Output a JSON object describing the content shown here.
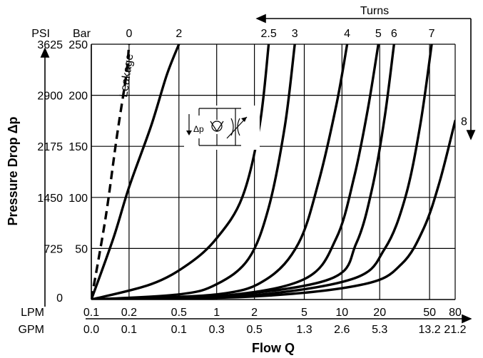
{
  "chart_data": {
    "type": "line",
    "xlabel": "Flow Q",
    "ylabel": "Pressure Drop Δp",
    "x_scale": "log",
    "ylim": [
      0,
      250
    ],
    "x_axes": [
      {
        "label": "LPM",
        "ticks": [
          "0.1",
          "0.2",
          "0.5",
          "1",
          "2",
          "5",
          "10",
          "20",
          "50",
          "80"
        ]
      },
      {
        "label": "GPM",
        "ticks": [
          "0.0",
          "0.1",
          "0.1",
          "0.3",
          "0.5",
          "1.3",
          "2.6",
          "5.3",
          "13.2",
          "21.2"
        ]
      }
    ],
    "y_axes": [
      {
        "label": "PSI",
        "ticks": [
          "0",
          "725",
          "1450",
          "2175",
          "2900",
          "3625"
        ]
      },
      {
        "label": "Bar",
        "ticks": [
          "50",
          "100",
          "150",
          "200",
          "250"
        ]
      }
    ],
    "turns_label": "Turns",
    "leakage_label": "Leakage",
    "symbol_label": "Δp",
    "series": [
      {
        "name": "0",
        "x": [
          0.1,
          0.13,
          0.16,
          0.19,
          0.2
        ],
        "y": [
          0,
          80,
          160,
          220,
          250
        ],
        "style": "dashed"
      },
      {
        "name": "2",
        "x": [
          0.1,
          0.15,
          0.2,
          0.3,
          0.4,
          0.5
        ],
        "y": [
          0,
          60,
          110,
          170,
          220,
          250
        ]
      },
      {
        "name": "2.5",
        "x": [
          0.1,
          0.3,
          0.6,
          1.0,
          1.6,
          2.2,
          2.6
        ],
        "y": [
          0,
          15,
          35,
          60,
          100,
          170,
          250
        ]
      },
      {
        "name": "3",
        "x": [
          0.1,
          0.5,
          1.0,
          1.8,
          2.6,
          3.5,
          4.2
        ],
        "y": [
          0,
          5,
          15,
          40,
          90,
          170,
          250
        ]
      },
      {
        "name": "4",
        "x": [
          0.1,
          1.0,
          2.5,
          4.5,
          6.5,
          9.0,
          11.0
        ],
        "y": [
          0,
          5,
          20,
          55,
          115,
          190,
          250
        ]
      },
      {
        "name": "5",
        "x": [
          0.1,
          1.0,
          5.0,
          9.0,
          12.5,
          16.0,
          19.5
        ],
        "y": [
          0,
          3,
          20,
          60,
          120,
          185,
          250
        ]
      },
      {
        "name": "6",
        "x": [
          0.1,
          1.0,
          8.0,
          13.0,
          17.5,
          22.0,
          26.0
        ],
        "y": [
          0,
          3,
          20,
          55,
          110,
          180,
          250
        ]
      },
      {
        "name": "7",
        "x": [
          0.1,
          1.5,
          12.0,
          22.0,
          32.0,
          42.0,
          52.0
        ],
        "y": [
          0,
          3,
          20,
          50,
          100,
          170,
          250
        ]
      },
      {
        "name": "8",
        "x": [
          0.1,
          2.0,
          15.0,
          30.0,
          45.0,
          60.0,
          80.0
        ],
        "y": [
          0,
          3,
          15,
          35,
          70,
          115,
          175
        ]
      }
    ]
  }
}
